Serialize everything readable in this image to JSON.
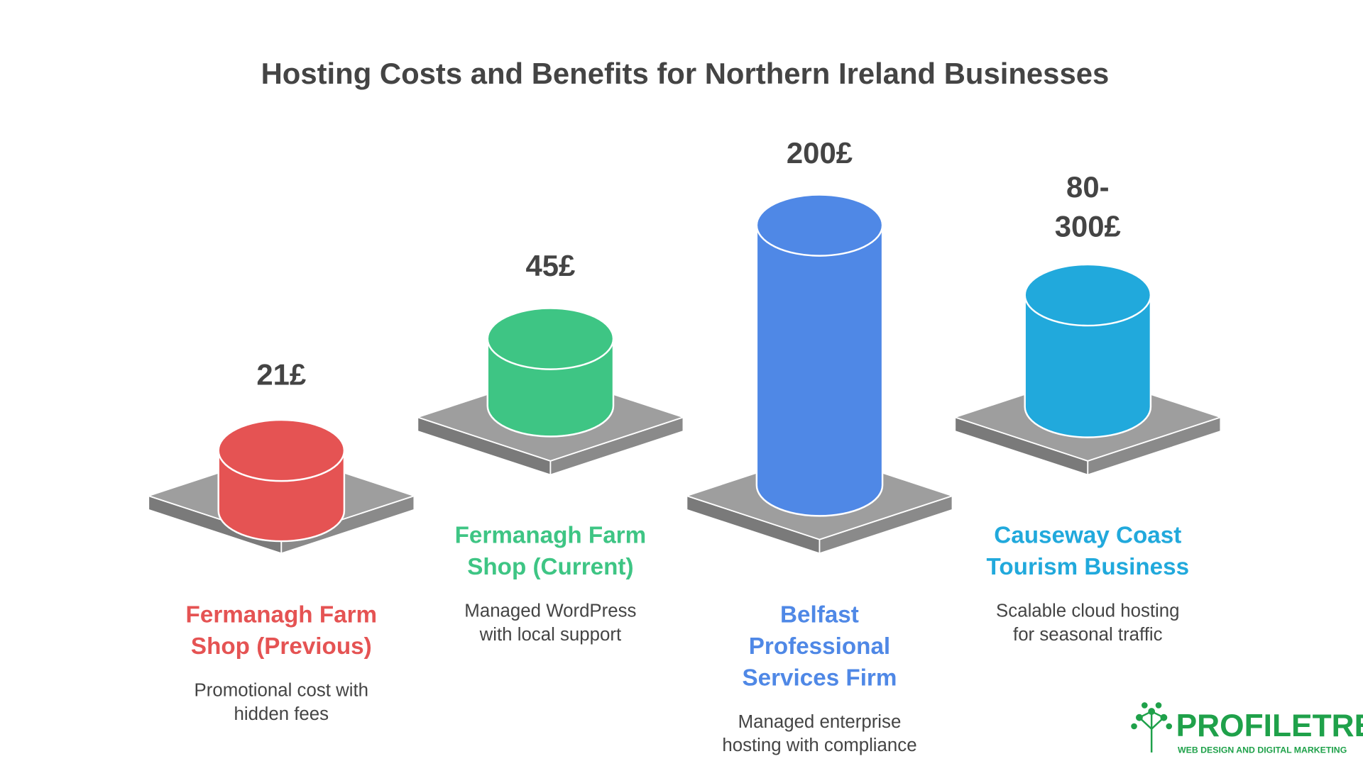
{
  "header": {
    "title": "Hosting Costs and Benefits for Northern Ireland Businesses"
  },
  "items": [
    {
      "value": [
        "21£"
      ],
      "name": [
        "Fermanagh Farm",
        "Shop (Previous)"
      ],
      "description": [
        "Promotional cost with",
        "hidden fees"
      ],
      "color": "#e55353"
    },
    {
      "value": [
        "45£"
      ],
      "name": [
        "Fermanagh Farm",
        "Shop (Current)"
      ],
      "description": [
        "Managed WordPress",
        "with local support"
      ],
      "color": "#3ec584"
    },
    {
      "value": [
        "200£"
      ],
      "name": [
        "Belfast",
        "Professional",
        "Services Firm"
      ],
      "description": [
        "Managed enterprise",
        "hosting with compliance"
      ],
      "color": "#4f88e6"
    },
    {
      "value": [
        "80-",
        "300£"
      ],
      "name": [
        "Causeway Coast",
        "Tourism Business"
      ],
      "description": [
        "Scalable cloud hosting",
        "for seasonal traffic"
      ],
      "color": "#21a9dc"
    }
  ],
  "logo": {
    "name": "PROFILETREE",
    "tagline": "WEB DESIGN AND DIGITAL MARKETING"
  }
}
